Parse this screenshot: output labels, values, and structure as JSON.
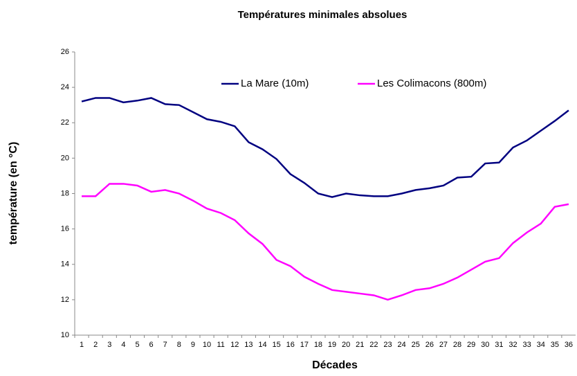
{
  "chart_data": {
    "type": "line",
    "title": "Températures minimales absolues",
    "x_label": "Décades",
    "y_label": "température (en °C)",
    "categories": [
      "1",
      "2",
      "3",
      "4",
      "5",
      "6",
      "7",
      "8",
      "9",
      "10",
      "11",
      "12",
      "13",
      "14",
      "15",
      "16",
      "17",
      "18",
      "19",
      "20",
      "21",
      "22",
      "23",
      "24",
      "25",
      "26",
      "27",
      "28",
      "29",
      "30",
      "31",
      "32",
      "33",
      "34",
      "35",
      "36"
    ],
    "series": [
      {
        "name": "La Mare (10m)",
        "color": "#000080",
        "values": [
          23.2,
          23.4,
          23.4,
          23.15,
          23.25,
          23.4,
          23.05,
          23.0,
          22.6,
          22.2,
          22.05,
          21.8,
          20.9,
          20.5,
          19.95,
          19.1,
          18.6,
          18.0,
          17.8,
          18.0,
          17.9,
          17.85,
          17.85,
          18.0,
          18.2,
          18.3,
          18.45,
          18.9,
          18.95,
          19.7,
          19.75,
          20.6,
          21.0,
          21.55,
          22.1,
          22.7
        ]
      },
      {
        "name": "Les Colimacons (800m)",
        "color": "#ff00ff",
        "values": [
          17.85,
          17.85,
          18.55,
          18.55,
          18.45,
          18.1,
          18.2,
          18.0,
          17.6,
          17.15,
          16.9,
          16.5,
          15.75,
          15.15,
          14.25,
          13.9,
          13.3,
          12.9,
          12.55,
          12.45,
          12.35,
          12.25,
          12.0,
          12.25,
          12.55,
          12.65,
          12.9,
          13.25,
          13.7,
          14.15,
          14.35,
          15.2,
          15.8,
          16.3,
          17.25,
          17.4
        ]
      }
    ],
    "ylim": [
      10,
      26
    ],
    "yticks": [
      10,
      12,
      14,
      16,
      18,
      20,
      22,
      24,
      26
    ],
    "grid": false,
    "legend": "top"
  }
}
